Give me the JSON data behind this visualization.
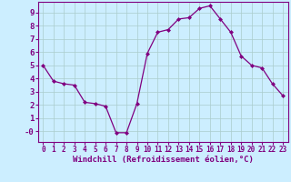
{
  "x": [
    0,
    1,
    2,
    3,
    4,
    5,
    6,
    7,
    8,
    9,
    10,
    11,
    12,
    13,
    14,
    15,
    16,
    17,
    18,
    19,
    20,
    21,
    22,
    23
  ],
  "y": [
    5.0,
    3.8,
    3.6,
    3.5,
    2.2,
    2.1,
    1.9,
    -0.1,
    -0.1,
    2.1,
    5.9,
    7.5,
    7.7,
    8.5,
    8.6,
    9.3,
    9.5,
    8.5,
    7.5,
    5.7,
    5.0,
    4.8,
    3.6,
    2.7
  ],
  "line_color": "#800080",
  "marker": "D",
  "markersize": 2.0,
  "linewidth": 0.9,
  "bg_color": "#cceeff",
  "grid_color": "#aacccc",
  "xlabel": "Windchill (Refroidissement éolien,°C)",
  "xlim": [
    -0.5,
    23.5
  ],
  "ylim": [
    -0.8,
    9.8
  ],
  "ytick_values": [
    0,
    1,
    2,
    3,
    4,
    5,
    6,
    7,
    8,
    9
  ],
  "ytick_labels": [
    "-0",
    "1",
    "2",
    "3",
    "4",
    "5",
    "6",
    "7",
    "8",
    "9"
  ],
  "xtick_values": [
    0,
    1,
    2,
    3,
    4,
    5,
    6,
    7,
    8,
    9,
    10,
    11,
    12,
    13,
    14,
    15,
    16,
    17,
    18,
    19,
    20,
    21,
    22,
    23
  ],
  "xtick_labels": [
    "0",
    "1",
    "2",
    "3",
    "4",
    "5",
    "6",
    "7",
    "8",
    "9",
    "10",
    "11",
    "12",
    "13",
    "14",
    "15",
    "16",
    "17",
    "18",
    "19",
    "20",
    "21",
    "22",
    "23"
  ],
  "tick_color": "#800080",
  "label_color": "#800080",
  "axis_color": "#800080",
  "xlabel_fontsize": 6.5,
  "ytick_fontsize": 6.5,
  "xtick_fontsize": 5.5
}
